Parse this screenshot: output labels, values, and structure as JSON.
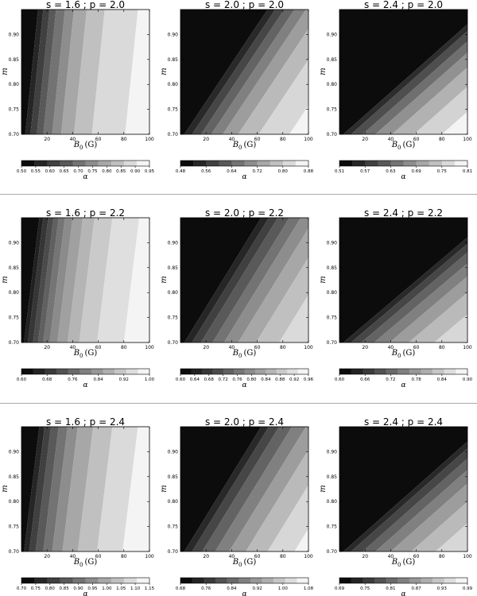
{
  "figure": {
    "x_label_base": "B",
    "x_label_sub": "0",
    "x_label_unit": "(G)",
    "y_label": "m",
    "colorbar_label": "α",
    "x_ticks": [
      20,
      40,
      60,
      80,
      100
    ],
    "y_ticks": [
      "0.70",
      "0.75",
      "0.80",
      "0.85",
      "0.90"
    ],
    "xlim": [
      0,
      100
    ],
    "ylim": [
      0.7,
      0.95
    ]
  },
  "chart_data": [
    {
      "type": "heatmap",
      "title": "s = 1.6 ; p = 2.0",
      "shades": 10,
      "slope": 10,
      "colorbar_ticks": [
        "0.50",
        "0.55",
        "0.60",
        "0.65",
        "0.70",
        "0.75",
        "0.80",
        "0.85",
        "0.90",
        "0.95"
      ],
      "boundaries": [
        3,
        7,
        12,
        17,
        24,
        31,
        41,
        55,
        81
      ]
    },
    {
      "type": "heatmap",
      "title": "s = 2.0 ; p = 2.0",
      "shades": 10,
      "slope": 65,
      "colorbar_ticks": [
        "0.48",
        "0.56",
        "0.64",
        "0.72",
        "0.80",
        "0.88"
      ],
      "boundaries": [
        3,
        9,
        16,
        24,
        33,
        45,
        61,
        85
      ]
    },
    {
      "type": "heatmap",
      "title": "s = 2.4 ; p = 2.0",
      "shades": 10,
      "slope": 110,
      "colorbar_ticks": [
        "0.51",
        "0.57",
        "0.63",
        "0.69",
        "0.75",
        "0.81"
      ],
      "boundaries": [
        3,
        9,
        18,
        28,
        41,
        58,
        80
      ]
    },
    {
      "type": "heatmap",
      "title": "s = 1.6 ; p = 2.2",
      "shades": 11,
      "slope": 12,
      "colorbar_ticks": [
        "0.60",
        "0.68",
        "0.76",
        "0.84",
        "0.92",
        "1.00"
      ],
      "boundaries": [
        2,
        5,
        9,
        13,
        17,
        22,
        28,
        36,
        45,
        59,
        80
      ]
    },
    {
      "type": "heatmap",
      "title": "s = 2.0 ; p = 2.2",
      "shades": 12,
      "slope": 60,
      "colorbar_ticks": [
        "0.60",
        "0.64",
        "0.68",
        "0.72",
        "0.76",
        "0.80",
        "0.84",
        "0.88",
        "0.92",
        "0.96"
      ],
      "boundaries": [
        3,
        9,
        16,
        25,
        34,
        45,
        59,
        77,
        100
      ]
    },
    {
      "type": "heatmap",
      "title": "s = 2.4 ; p = 2.2",
      "shades": 11,
      "slope": 115,
      "colorbar_ticks": [
        "0.60",
        "0.66",
        "0.72",
        "0.78",
        "0.84",
        "0.90"
      ],
      "boundaries": [
        3,
        9,
        17,
        27,
        39,
        54,
        74,
        98
      ]
    },
    {
      "type": "heatmap",
      "title": "s = 1.6 ; p = 2.4",
      "shades": 10,
      "slope": 12,
      "colorbar_ticks": [
        "0.70",
        "0.75",
        "0.80",
        "0.85",
        "0.90",
        "0.95",
        "1.00",
        "1.05",
        "1.10",
        "1.15"
      ],
      "boundaries": [
        2,
        6,
        11,
        17,
        24,
        32,
        44,
        59,
        79
      ]
    },
    {
      "type": "heatmap",
      "title": "s = 2.0 ; p = 2.4",
      "shades": 11,
      "slope": 60,
      "colorbar_ticks": [
        "0.68",
        "0.76",
        "0.84",
        "0.92",
        "1.00",
        "1.08"
      ],
      "boundaries": [
        3,
        9,
        17,
        27,
        38,
        51,
        68,
        89
      ]
    },
    {
      "type": "heatmap",
      "title": "s = 2.4 ; p = 2.4",
      "shades": 11,
      "slope": 110,
      "colorbar_ticks": [
        "0.69",
        "0.75",
        "0.81",
        "0.87",
        "0.93",
        "0.99"
      ],
      "boundaries": [
        3,
        9,
        18,
        28,
        40,
        56,
        75,
        98
      ]
    }
  ]
}
